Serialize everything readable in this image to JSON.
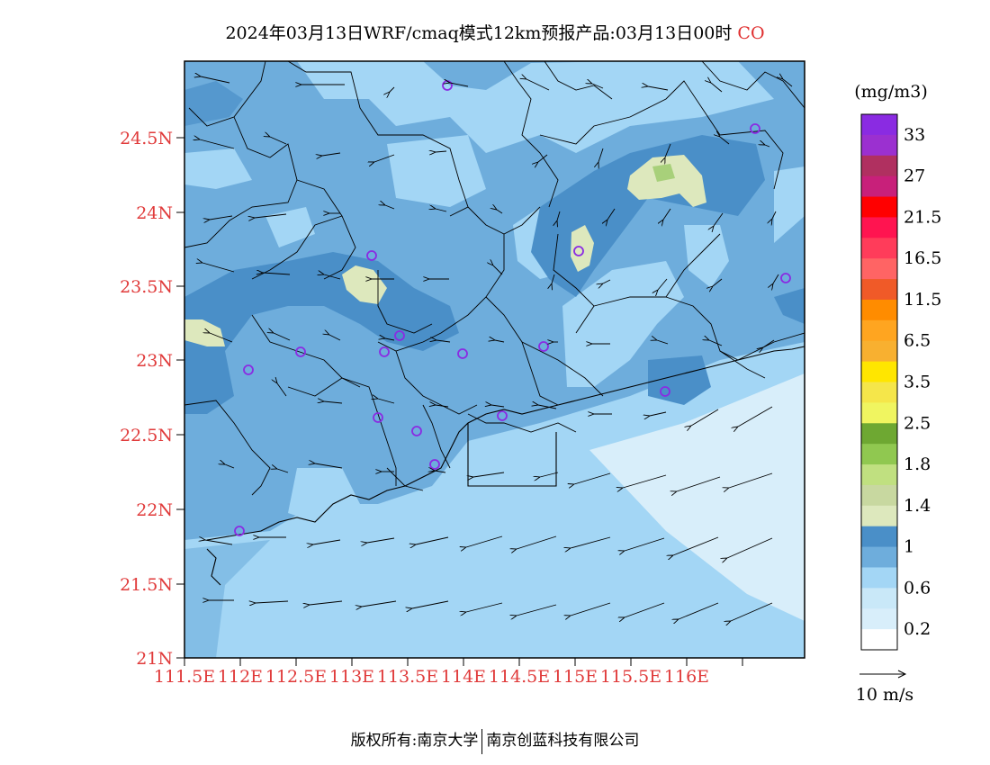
{
  "title": {
    "text": "2024年03月13日WRF/cmaq模式12km预报产品:03月13日00时",
    "pollutant": "CO"
  },
  "map": {
    "lat_labels": [
      "24.5N",
      "24N",
      "23.5N",
      "23N",
      "22.5N",
      "22N",
      "21.5N",
      "21N"
    ],
    "lon_labels": [
      "111.5E",
      "112E",
      "112.5E",
      "113E",
      "113.5E",
      "114E",
      "114.5E",
      "115E",
      "115.5E",
      "116E"
    ],
    "station_markers": "purple circles",
    "wind_vectors": "predominantly easterly / north-easterly",
    "colors": {
      "ocean": "#d8eefa",
      "low": "#a3d6f5",
      "mid": "#6eaddc",
      "high": "#4a8fc8",
      "peak": "#dde8bd",
      "peak_core": "#a8d07a",
      "station": "#8a2be2",
      "axis_label": "#e03a3a"
    }
  },
  "legend": {
    "unit": "(mg/m3)",
    "labels": [
      "33",
      "27",
      "21.5",
      "16.5",
      "11.5",
      "6.5",
      "3.5",
      "2.5",
      "1.8",
      "1.4",
      "1",
      "0.6",
      "0.2"
    ],
    "colors": [
      "#8a2be2",
      "#9b30d0",
      "#b03060",
      "#c8207a",
      "#ff0000",
      "#ff1450",
      "#ff3c5a",
      "#ff6464",
      "#f05a28",
      "#ff8c00",
      "#ffa520",
      "#f8b030",
      "#ffe600",
      "#f5e64a",
      "#f0f560",
      "#6ea832",
      "#90c850",
      "#c0e080",
      "#c8d8a0",
      "#dde8bd",
      "#4a8fc8",
      "#6eaddc",
      "#a3d6f5",
      "#c9e8f8",
      "#d8eefa",
      "#ffffff"
    ],
    "wind_scale": "10 m/s"
  },
  "footer": {
    "owner": "版权所有:南京大学",
    "company": "南京创蓝科技有限公司"
  }
}
